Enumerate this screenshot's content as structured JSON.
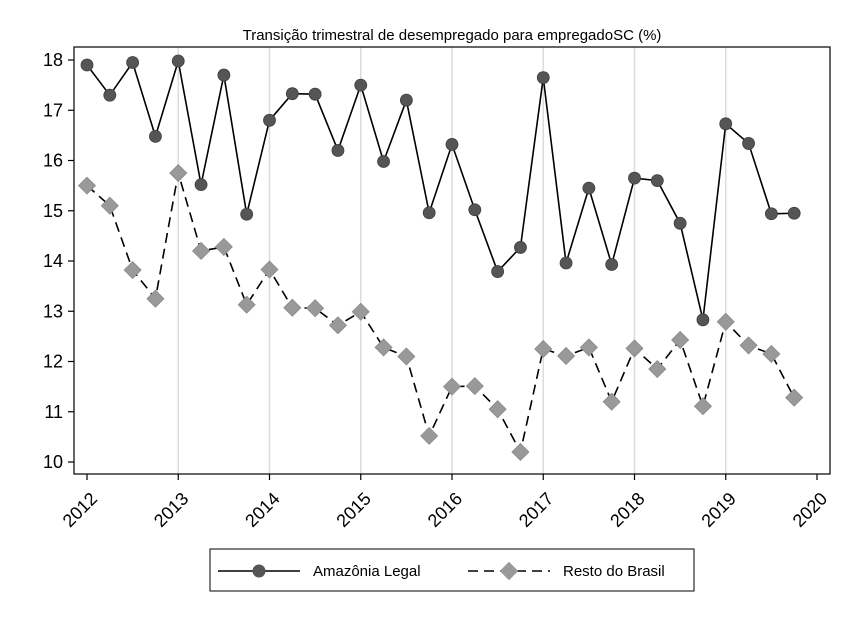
{
  "chart_data": {
    "type": "line",
    "title": "Transição trimestral de desempregado para empregadoSC (%)",
    "xlabel": "",
    "ylabel": "",
    "x_tick_labels": [
      "2012",
      "2013",
      "2014",
      "2015",
      "2016",
      "2017",
      "2018",
      "2019",
      "2020"
    ],
    "y_tick_labels": [
      "10",
      "11",
      "12",
      "13",
      "14",
      "15",
      "16",
      "17",
      "18"
    ],
    "xlim": [
      2012,
      2020
    ],
    "ylim": [
      9.7,
      18.3
    ],
    "grid": "vertical at years",
    "legend_position": "bottom",
    "x": [
      2012.0,
      2012.25,
      2012.5,
      2012.75,
      2013.0,
      2013.25,
      2013.5,
      2013.75,
      2014.0,
      2014.25,
      2014.5,
      2014.75,
      2015.0,
      2015.25,
      2015.5,
      2015.75,
      2016.0,
      2016.25,
      2016.5,
      2016.75,
      2017.0,
      2017.25,
      2017.5,
      2017.75,
      2018.0,
      2018.25,
      2018.5,
      2018.75,
      2019.0,
      2019.25,
      2019.5,
      2019.75
    ],
    "series": [
      {
        "name": "Amazônia Legal",
        "color": "#555555",
        "line_style": "solid",
        "marker": "circle",
        "values": [
          17.9,
          17.3,
          17.95,
          16.48,
          17.98,
          15.52,
          17.7,
          14.93,
          16.8,
          17.33,
          17.32,
          16.2,
          17.5,
          15.98,
          17.2,
          14.96,
          16.32,
          15.02,
          13.79,
          14.27,
          17.65,
          13.96,
          15.45,
          13.93,
          15.65,
          15.6,
          14.75,
          12.83,
          16.73,
          16.34,
          14.94,
          14.95
        ]
      },
      {
        "name": "Resto do Brasil",
        "color": "#999999",
        "line_style": "dashed",
        "marker": "diamond",
        "values": [
          15.5,
          15.1,
          13.82,
          13.25,
          15.75,
          14.2,
          14.28,
          13.13,
          13.83,
          13.07,
          13.06,
          12.72,
          12.99,
          12.28,
          12.1,
          10.52,
          11.5,
          11.51,
          11.05,
          10.2,
          12.25,
          12.11,
          12.28,
          11.2,
          12.26,
          11.85,
          12.43,
          11.11,
          12.79,
          12.32,
          12.15,
          11.28
        ]
      }
    ]
  }
}
